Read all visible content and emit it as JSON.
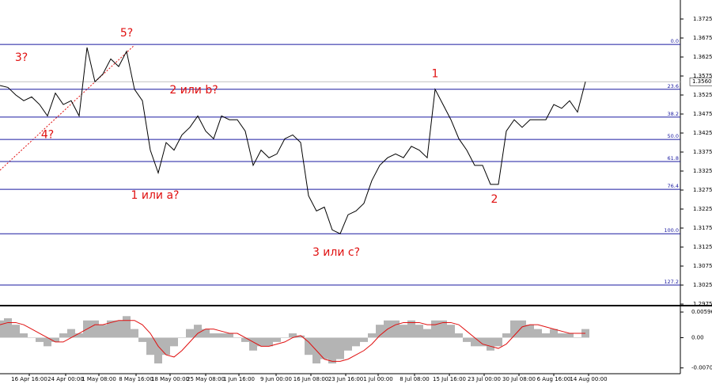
{
  "chart_data": {
    "type": "line",
    "color": "#000000",
    "x": [
      0,
      1,
      2,
      3,
      4,
      5,
      6,
      7,
      8,
      9,
      10,
      11,
      12,
      13,
      14,
      15,
      16,
      17,
      18,
      19,
      20,
      21,
      22,
      23,
      24,
      25,
      26,
      27,
      28,
      29,
      30,
      31,
      32,
      33,
      34,
      35,
      36,
      37,
      38,
      39,
      40,
      41,
      42,
      43,
      44,
      45,
      46,
      47,
      48,
      49,
      50,
      51,
      52,
      53,
      54,
      55,
      56,
      57,
      58,
      59,
      60,
      61,
      62,
      63,
      64,
      65,
      66,
      67,
      68,
      69,
      70,
      71,
      72,
      73,
      74
    ],
    "values": [
      1.355,
      1.3545,
      1.3525,
      1.351,
      1.352,
      1.35,
      1.347,
      1.353,
      1.35,
      1.351,
      1.347,
      1.365,
      1.356,
      1.358,
      1.362,
      1.36,
      1.364,
      1.354,
      1.351,
      1.338,
      1.332,
      1.34,
      1.338,
      1.342,
      1.344,
      1.347,
      1.343,
      1.341,
      1.347,
      1.346,
      1.346,
      1.343,
      1.334,
      1.338,
      1.336,
      1.337,
      1.341,
      1.342,
      1.34,
      1.326,
      1.322,
      1.323,
      1.317,
      1.316,
      1.321,
      1.322,
      1.324,
      1.33,
      1.334,
      1.336,
      1.337,
      1.336,
      1.339,
      1.338,
      1.336,
      1.354,
      1.35,
      1.346,
      1.341,
      1.338,
      1.334,
      1.334,
      1.329,
      1.329,
      1.343,
      1.346,
      1.344,
      1.346,
      1.346,
      1.346,
      1.35,
      1.349,
      1.351,
      1.348,
      1.356
    ],
    "xlim": [
      0,
      86
    ],
    "xticks": [
      {
        "value": 3.7,
        "label": "16 Apr 16:00"
      },
      {
        "value": 8.3,
        "label": "24 Apr 00:00"
      },
      {
        "value": 12.5,
        "label": "1 May 08:00"
      },
      {
        "value": 17.2,
        "label": "8 May 16:00"
      },
      {
        "value": 21.5,
        "label": "18 May 00:00"
      },
      {
        "value": 26,
        "label": "25 May 08:00"
      },
      {
        "value": 30.2,
        "label": "1 Jun 16:00"
      },
      {
        "value": 34.9,
        "label": "9 Jun 00:00"
      },
      {
        "value": 39.3,
        "label": "16 Jun 08:00"
      },
      {
        "value": 43.7,
        "label": "23 Jun 16:00"
      },
      {
        "value": 47.8,
        "label": "1 Jul 00:00"
      },
      {
        "value": 52.4,
        "label": "8 Jul 08:00"
      },
      {
        "value": 56.8,
        "label": "15 Jul 16:00"
      },
      {
        "value": 61.2,
        "label": "23 Jul 00:00"
      },
      {
        "value": 65.6,
        "label": "30 Jul 08:00"
      },
      {
        "value": 70,
        "label": "6 Aug 16:00"
      },
      {
        "value": 74.4,
        "label": "14 Aug 00:00"
      }
    ],
    "ylim": [
      1.2973,
      1.3775
    ],
    "yticks": [
      1.3725,
      1.3675,
      1.3625,
      1.3575,
      1.3525,
      1.3475,
      1.3425,
      1.3375,
      1.3325,
      1.3275,
      1.3225,
      1.3175,
      1.3125,
      1.3075,
      1.3025,
      1.2975
    ],
    "last_price": {
      "value": 1.356,
      "label": "1.3560"
    },
    "fib_levels": [
      {
        "name": "0.0",
        "price": 1.3658
      },
      {
        "name": "23.6",
        "price": 1.354
      },
      {
        "name": "38.2",
        "price": 1.3467
      },
      {
        "name": "50.0",
        "price": 1.3408
      },
      {
        "name": "61.8",
        "price": 1.335
      },
      {
        "name": "76.4",
        "price": 1.3277
      },
      {
        "name": "100.0",
        "price": 1.316
      },
      {
        "name": "127.2",
        "price": 1.3025
      }
    ],
    "fib_color": "#1a1aa0",
    "annotations": [
      {
        "text": "3?",
        "x": 2.7,
        "price": 1.3623
      },
      {
        "text": "5?",
        "x": 16,
        "price": 1.3688
      },
      {
        "text": "4?",
        "x": 6,
        "price": 1.342
      },
      {
        "text": "2 или b?",
        "x": 24.5,
        "price": 1.3538
      },
      {
        "text": "1 или a?",
        "x": 19.6,
        "price": 1.326
      },
      {
        "text": "3 или c?",
        "x": 42.5,
        "price": 1.311
      },
      {
        "text": "1",
        "x": 55,
        "price": 1.358
      },
      {
        "text": "2",
        "x": 62.5,
        "price": 1.325
      }
    ],
    "macd": {
      "histogram_color": "#b4b4b4",
      "signal_color": "#e01010",
      "histogram": [
        0.004,
        0.0045,
        0.003,
        0.001,
        0,
        -0.001,
        -0.002,
        -0.001,
        0.001,
        0.002,
        0.001,
        0.004,
        0.004,
        0.003,
        0.004,
        0.004,
        0.005,
        0.002,
        -0.001,
        -0.004,
        -0.006,
        -0.004,
        -0.002,
        0,
        0.002,
        0.003,
        0.002,
        0.001,
        0.001,
        0.001,
        0,
        -0.001,
        -0.003,
        -0.002,
        -0.002,
        -0.001,
        0,
        0.001,
        0.0005,
        -0.004,
        -0.006,
        -0.005,
        -0.006,
        -0.005,
        -0.003,
        -0.002,
        -0.001,
        0.001,
        0.003,
        0.004,
        0.004,
        0.003,
        0.004,
        0.003,
        0.002,
        0.004,
        0.004,
        0.003,
        0.001,
        -0.001,
        -0.002,
        -0.002,
        -0.003,
        -0.002,
        0.001,
        0.004,
        0.004,
        0.003,
        0.002,
        0.001,
        0.002,
        0.001,
        0.001,
        0,
        0.002
      ],
      "signal": [
        0.003,
        0.0035,
        0.0035,
        0.003,
        0.002,
        0.001,
        0,
        -0.001,
        -0.001,
        0,
        0.001,
        0.002,
        0.003,
        0.003,
        0.0035,
        0.004,
        0.004,
        0.004,
        0.003,
        0.001,
        -0.002,
        -0.004,
        -0.0045,
        -0.003,
        -0.001,
        0.001,
        0.002,
        0.002,
        0.0015,
        0.001,
        0.001,
        0,
        -0.001,
        -0.002,
        -0.002,
        -0.0015,
        -0.001,
        0,
        0.0005,
        -0.001,
        -0.003,
        -0.005,
        -0.0055,
        -0.0055,
        -0.005,
        -0.004,
        -0.003,
        -0.0015,
        0.0005,
        0.002,
        0.003,
        0.0035,
        0.0035,
        0.0035,
        0.003,
        0.003,
        0.0035,
        0.0035,
        0.003,
        0.0015,
        0,
        -0.0015,
        -0.002,
        -0.0025,
        -0.0015,
        0.0005,
        0.0025,
        0.003,
        0.003,
        0.0025,
        0.002,
        0.0015,
        0.001,
        0.001,
        0.001
      ],
      "ylim": [
        -0.0082,
        0.00708
      ],
      "yticks": [
        0.00596,
        {
          "value": 0,
          "label": "0.00"
        },
        -0.00704
      ]
    }
  }
}
